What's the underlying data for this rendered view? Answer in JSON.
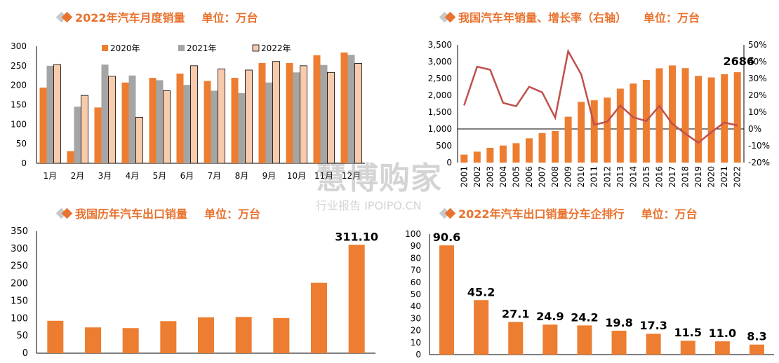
{
  "colors": {
    "orange": "#ed7d31",
    "gray": "#a5a5a5",
    "peach": "#f8cbad",
    "line": "#c0504d",
    "title": "#e8722e"
  },
  "panels": {
    "monthly": {
      "title": "2022年汽车月度销量",
      "unit": "单位：万台"
    },
    "annual": {
      "title": "我国汽车年销量、增长率（右轴）",
      "unit": "单位：万台"
    },
    "export": {
      "title": "我国历年汽车出口销量",
      "unit": "单位：万台"
    },
    "ranking": {
      "title": "2022年汽车出口销量分车企排行",
      "unit": "单位：万台"
    }
  },
  "watermark": {
    "main": "慧博购家",
    "sub": "行业报告 IPOIPO.CN"
  },
  "chart_data": [
    {
      "type": "bar",
      "categories": [
        "1月",
        "2月",
        "3月",
        "4月",
        "5月",
        "6月",
        "7月",
        "8月",
        "9月",
        "10月",
        "11月",
        "12月"
      ],
      "series": [
        {
          "name": "2020年",
          "values": [
            194,
            31,
            143,
            207,
            219,
            230,
            211,
            219,
            257,
            257,
            277,
            284
          ]
        },
        {
          "name": "2021年",
          "values": [
            250,
            145,
            253,
            225,
            213,
            201,
            186,
            180,
            207,
            233,
            252,
            278
          ]
        },
        {
          "name": "2022年",
          "values": [
            253,
            174,
            223,
            118,
            186,
            250,
            242,
            239,
            261,
            250,
            233,
            256
          ]
        }
      ],
      "ylim": [
        0,
        300
      ],
      "yticks": [
        0,
        50,
        100,
        150,
        200,
        250,
        300
      ],
      "legend": "top"
    },
    {
      "type": "bar",
      "categories": [
        "2001",
        "2002",
        "2003",
        "2004",
        "2005",
        "2006",
        "2007",
        "2008",
        "2009",
        "2010",
        "2011",
        "2012",
        "2013",
        "2014",
        "2015",
        "2016",
        "2017",
        "2018",
        "2019",
        "2020",
        "2021",
        "2022"
      ],
      "series": [
        {
          "values": [
            237,
            325,
            439,
            507,
            576,
            722,
            879,
            938,
            1364,
            1806,
            1851,
            1931,
            2198,
            2349,
            2460,
            2803,
            2888,
            2808,
            2577,
            2531,
            2628,
            2686
          ],
          "axis": "left"
        },
        {
          "type": "line",
          "values": [
            14.0,
            37.0,
            35.2,
            15.5,
            13.5,
            25.1,
            21.8,
            6.7,
            46.2,
            32.4,
            2.5,
            4.3,
            13.9,
            6.9,
            4.7,
            13.7,
            3.0,
            -2.8,
            -8.2,
            -1.9,
            3.8,
            2.1
          ],
          "axis": "right",
          "unit": "%"
        }
      ],
      "ylim": [
        0,
        3500
      ],
      "yticks": [
        "0",
        "500",
        "1,000",
        "1,500",
        "2,000",
        "2,500",
        "3,000",
        "3,500"
      ],
      "y2lim": [
        -20,
        50
      ],
      "y2ticks": [
        "-20%",
        "-10%",
        "0%",
        "10%",
        "20%",
        "30%",
        "40%",
        "50%"
      ],
      "annotation": "2686"
    },
    {
      "type": "bar",
      "values": [
        93,
        74,
        72,
        92,
        103,
        104,
        101,
        202,
        311.1
      ],
      "ylim": [
        0,
        350
      ],
      "yticks": [
        0,
        50,
        100,
        150,
        200,
        250,
        300,
        350
      ],
      "annotation": "311.10"
    },
    {
      "type": "bar",
      "values": [
        90.6,
        45.2,
        27.1,
        24.9,
        24.2,
        19.8,
        17.3,
        11.5,
        11.0,
        8.3
      ],
      "labels": [
        "90.6",
        "45.2",
        "27.1",
        "24.9",
        "24.2",
        "19.8",
        "17.3",
        "11.5",
        "11.0",
        "8.3"
      ],
      "ylim": [
        0,
        100
      ],
      "yticks": [
        0,
        10,
        20,
        30,
        40,
        50,
        60,
        70,
        80,
        90,
        100
      ]
    }
  ]
}
